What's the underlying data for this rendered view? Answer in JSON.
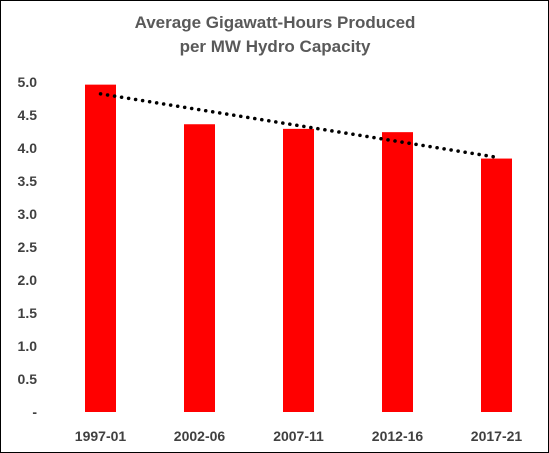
{
  "chart_data": {
    "type": "bar",
    "title_lines": [
      "Average Gigawatt-Hours Produced",
      "per MW Hydro Capacity"
    ],
    "categories": [
      "1997-01",
      "2002-06",
      "2007-11",
      "2012-16",
      "2017-21"
    ],
    "values": [
      4.96,
      4.36,
      4.29,
      4.24,
      3.84
    ],
    "ylim": [
      0,
      5.0
    ],
    "yticks": [
      "-",
      "0.5",
      "1.0",
      "1.5",
      "2.0",
      "2.5",
      "3.0",
      "3.5",
      "4.0",
      "4.5",
      "5.0"
    ],
    "xlabel": "",
    "ylabel": "",
    "grid": false,
    "legend": "none",
    "bar_color": "#ff0000",
    "trendline": {
      "type": "linear",
      "style": "dotted",
      "color": "#000000",
      "start": 4.82,
      "end": 3.86
    }
  }
}
